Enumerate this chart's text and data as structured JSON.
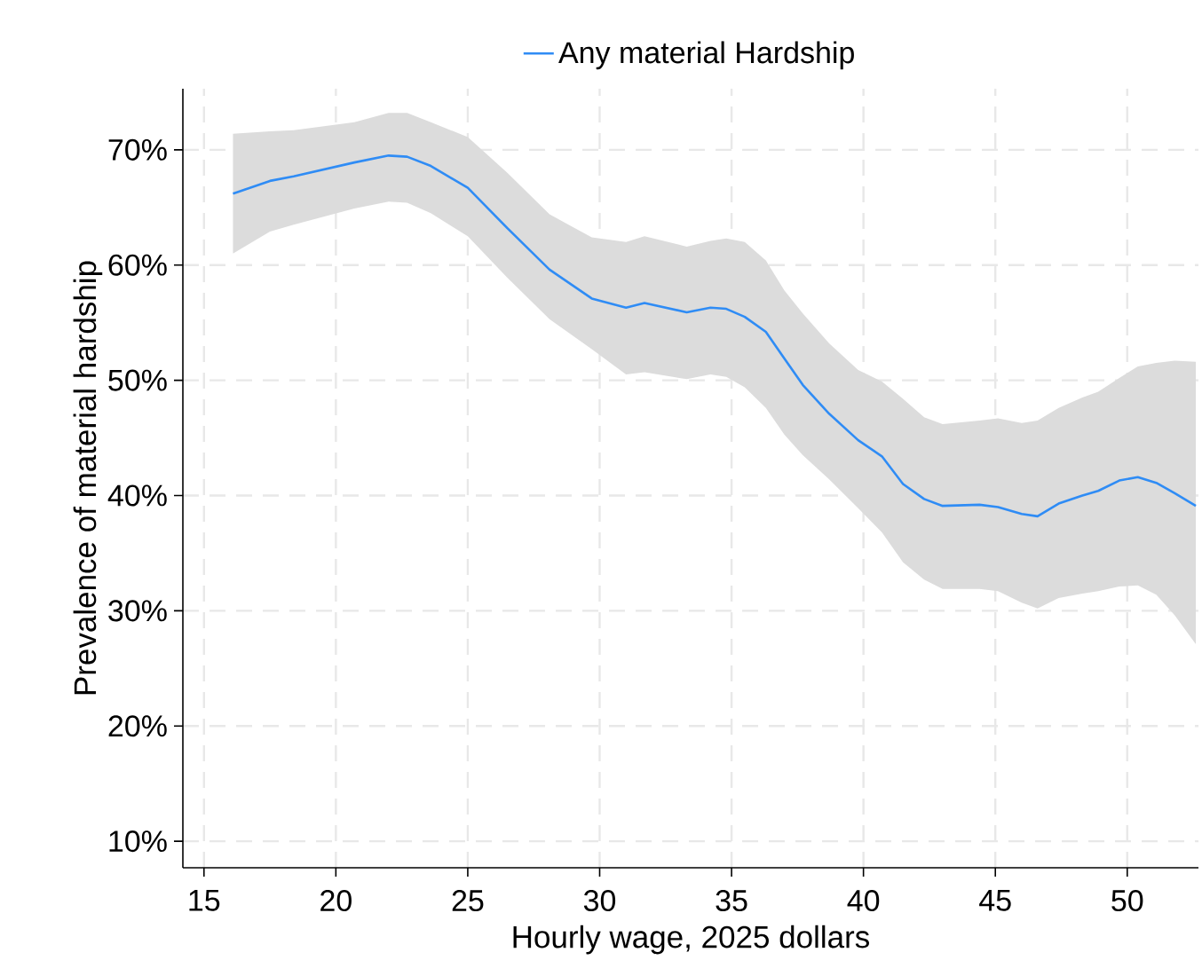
{
  "chart_data": {
    "type": "line",
    "xlabel": "Hourly wage, 2025 dollars",
    "ylabel": "Prevalence of material hardship",
    "xlim": [
      14.2,
      52.7
    ],
    "ylim": [
      7.7,
      75.3
    ],
    "xticks": [
      15,
      20,
      25,
      30,
      35,
      40,
      45,
      50
    ],
    "yticks": [
      {
        "value": 10,
        "label": "10%"
      },
      {
        "value": 20,
        "label": "20%"
      },
      {
        "value": 30,
        "label": "30%"
      },
      {
        "value": 40,
        "label": "40%"
      },
      {
        "value": 50,
        "label": "50%"
      },
      {
        "value": 60,
        "label": "60%"
      },
      {
        "value": 70,
        "label": "70%"
      }
    ],
    "grid": true,
    "legend": "top",
    "line_style": "solid",
    "marker": "none",
    "series": [
      {
        "name": "Any material Hardship",
        "color": "#2f8cf5",
        "x": [
          16.1,
          17.5,
          18.4,
          20.7,
          22.0,
          22.7,
          23.6,
          25.0,
          26.5,
          28.1,
          29.7,
          31.0,
          31.7,
          33.3,
          34.2,
          34.8,
          35.5,
          36.3,
          37.0,
          37.7,
          38.7,
          39.8,
          40.7,
          41.5,
          42.3,
          43.0,
          44.4,
          45.1,
          46.0,
          46.6,
          47.4,
          48.3,
          48.9,
          49.7,
          50.4,
          51.1,
          51.8,
          52.6
        ],
        "values": [
          66.2,
          67.3,
          67.7,
          68.9,
          69.5,
          69.4,
          68.6,
          66.7,
          63.2,
          59.6,
          57.1,
          56.3,
          56.7,
          55.9,
          56.3,
          56.2,
          55.5,
          54.2,
          51.9,
          49.6,
          47.1,
          44.8,
          43.4,
          41.0,
          39.7,
          39.1,
          39.2,
          39.0,
          38.4,
          38.2,
          39.3,
          40.0,
          40.4,
          41.3,
          41.6,
          41.1,
          40.2,
          39.1
        ],
        "upper": [
          71.4,
          71.6,
          71.7,
          72.4,
          73.2,
          73.2,
          72.4,
          71.1,
          68.0,
          64.4,
          62.4,
          62.0,
          62.5,
          61.6,
          62.1,
          62.3,
          62.0,
          60.4,
          57.8,
          55.8,
          53.2,
          50.9,
          49.9,
          48.4,
          46.8,
          46.2,
          46.5,
          46.7,
          46.3,
          46.5,
          47.6,
          48.5,
          49.0,
          50.2,
          51.2,
          51.5,
          51.7,
          51.6
        ],
        "lower": [
          61.0,
          62.9,
          63.5,
          64.9,
          65.5,
          65.4,
          64.5,
          62.5,
          58.9,
          55.3,
          52.7,
          50.5,
          50.7,
          50.1,
          50.5,
          50.3,
          49.4,
          47.6,
          45.3,
          43.5,
          41.4,
          38.9,
          36.8,
          34.2,
          32.7,
          31.9,
          31.9,
          31.7,
          30.7,
          30.2,
          31.1,
          31.5,
          31.7,
          32.1,
          32.2,
          31.4,
          29.6,
          27.1
        ]
      }
    ]
  }
}
